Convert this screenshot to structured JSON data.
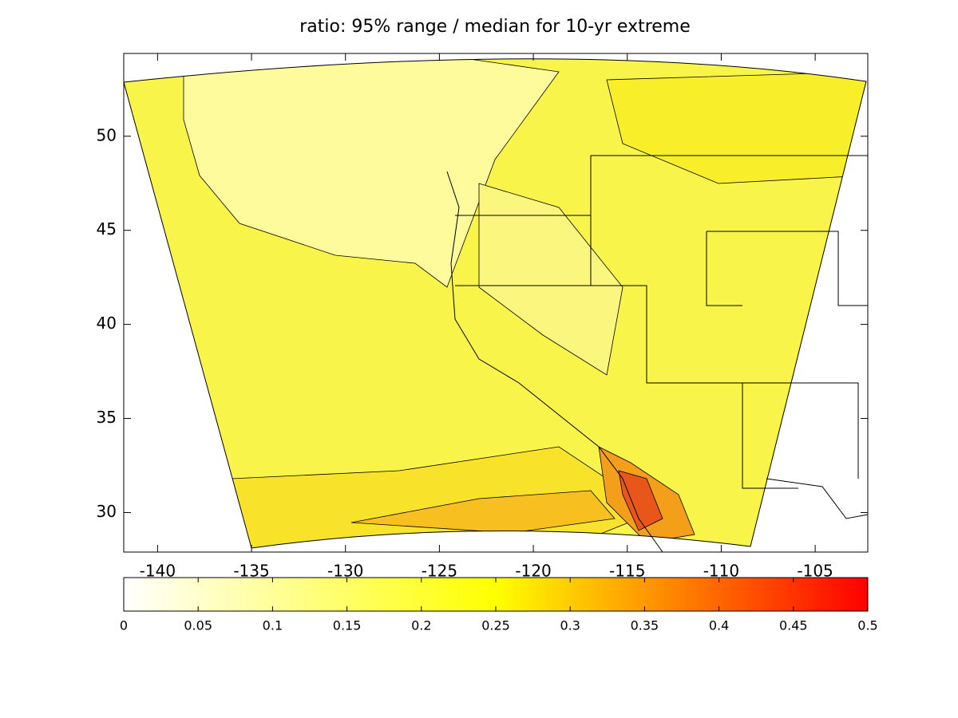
{
  "chart_data": {
    "type": "contour-map",
    "title": "ratio: 95% range / median for 10-yr extreme",
    "xlim": [
      -141.8,
      -102.2
    ],
    "xticks": [
      -140,
      -135,
      -130,
      -125,
      -120,
      -115,
      -110,
      -105
    ],
    "ylim": [
      27.9,
      54.4
    ],
    "yticks": [
      30,
      35,
      40,
      45,
      50
    ],
    "colorbar": {
      "lim": [
        0,
        0.5
      ],
      "ticks": [
        0,
        0.05,
        0.1,
        0.15,
        0.2,
        0.25,
        0.3,
        0.35,
        0.4,
        0.45,
        0.5
      ],
      "colormap": [
        "#ffffff",
        "#ffff00",
        "#ff0000"
      ]
    }
  }
}
